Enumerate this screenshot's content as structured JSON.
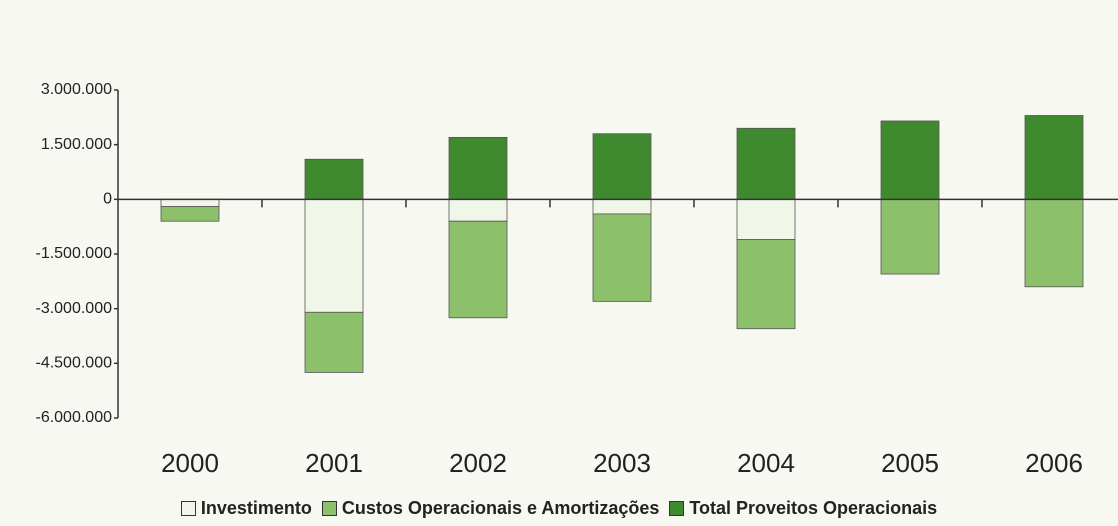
{
  "chart_data": {
    "type": "bar",
    "stacked": true,
    "categories": [
      "2000",
      "2001",
      "2002",
      "2003",
      "2004",
      "2005",
      "2006"
    ],
    "series": [
      {
        "name": "Investimento",
        "color": "#f1f7e8",
        "values": [
          -200000,
          -3100000,
          -600000,
          -400000,
          -1100000,
          0,
          0
        ]
      },
      {
        "name": "Custos Operacionais e Amortizações",
        "color": "#8dc06a",
        "values": [
          -400000,
          -1650000,
          -2650000,
          -2400000,
          -2450000,
          -2050000,
          -2400000
        ]
      },
      {
        "name": "Total Proveitos Operacionais",
        "color": "#3f8a2f",
        "values": [
          0,
          1100000,
          1700000,
          1800000,
          1950000,
          2150000,
          2300000
        ]
      }
    ],
    "ylim": [
      -6000000,
      3000000
    ],
    "yticks": [
      {
        "value": 3000000,
        "label": "3.000.000"
      },
      {
        "value": 1500000,
        "label": "1.500.000"
      },
      0,
      {
        "value": -1500000,
        "label": "-1.500.000"
      },
      {
        "value": -3000000,
        "label": "-3.000.000"
      },
      {
        "value": -4500000,
        "label": "-4.500.000"
      },
      {
        "value": -6000000,
        "label": "-6.000.000"
      }
    ],
    "grid": false,
    "legend": "bottom"
  }
}
